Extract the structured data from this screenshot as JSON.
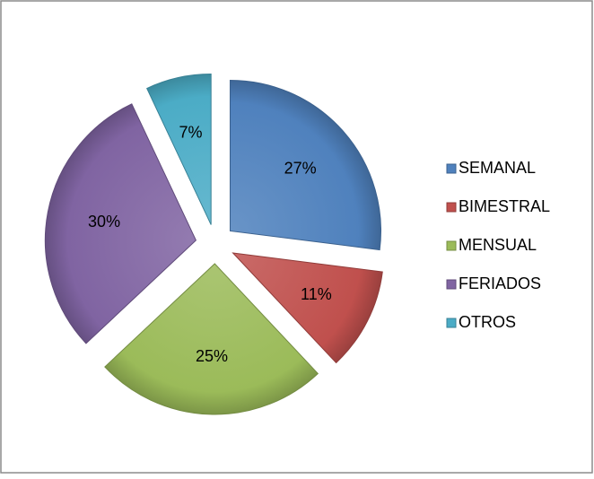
{
  "chart_data": {
    "type": "pie",
    "categories": [
      "SEMANAL",
      "BIMESTRAL",
      "MENSUAL",
      "FERIADOS",
      "OTROS"
    ],
    "values": [
      27,
      11,
      25,
      30,
      7
    ],
    "value_labels": [
      "27%",
      "11%",
      "25%",
      "30%",
      "7%"
    ],
    "colors": [
      "#4f81bd",
      "#c0504d",
      "#9bbb59",
      "#8064a2",
      "#4bacc6"
    ],
    "legend": "right"
  }
}
